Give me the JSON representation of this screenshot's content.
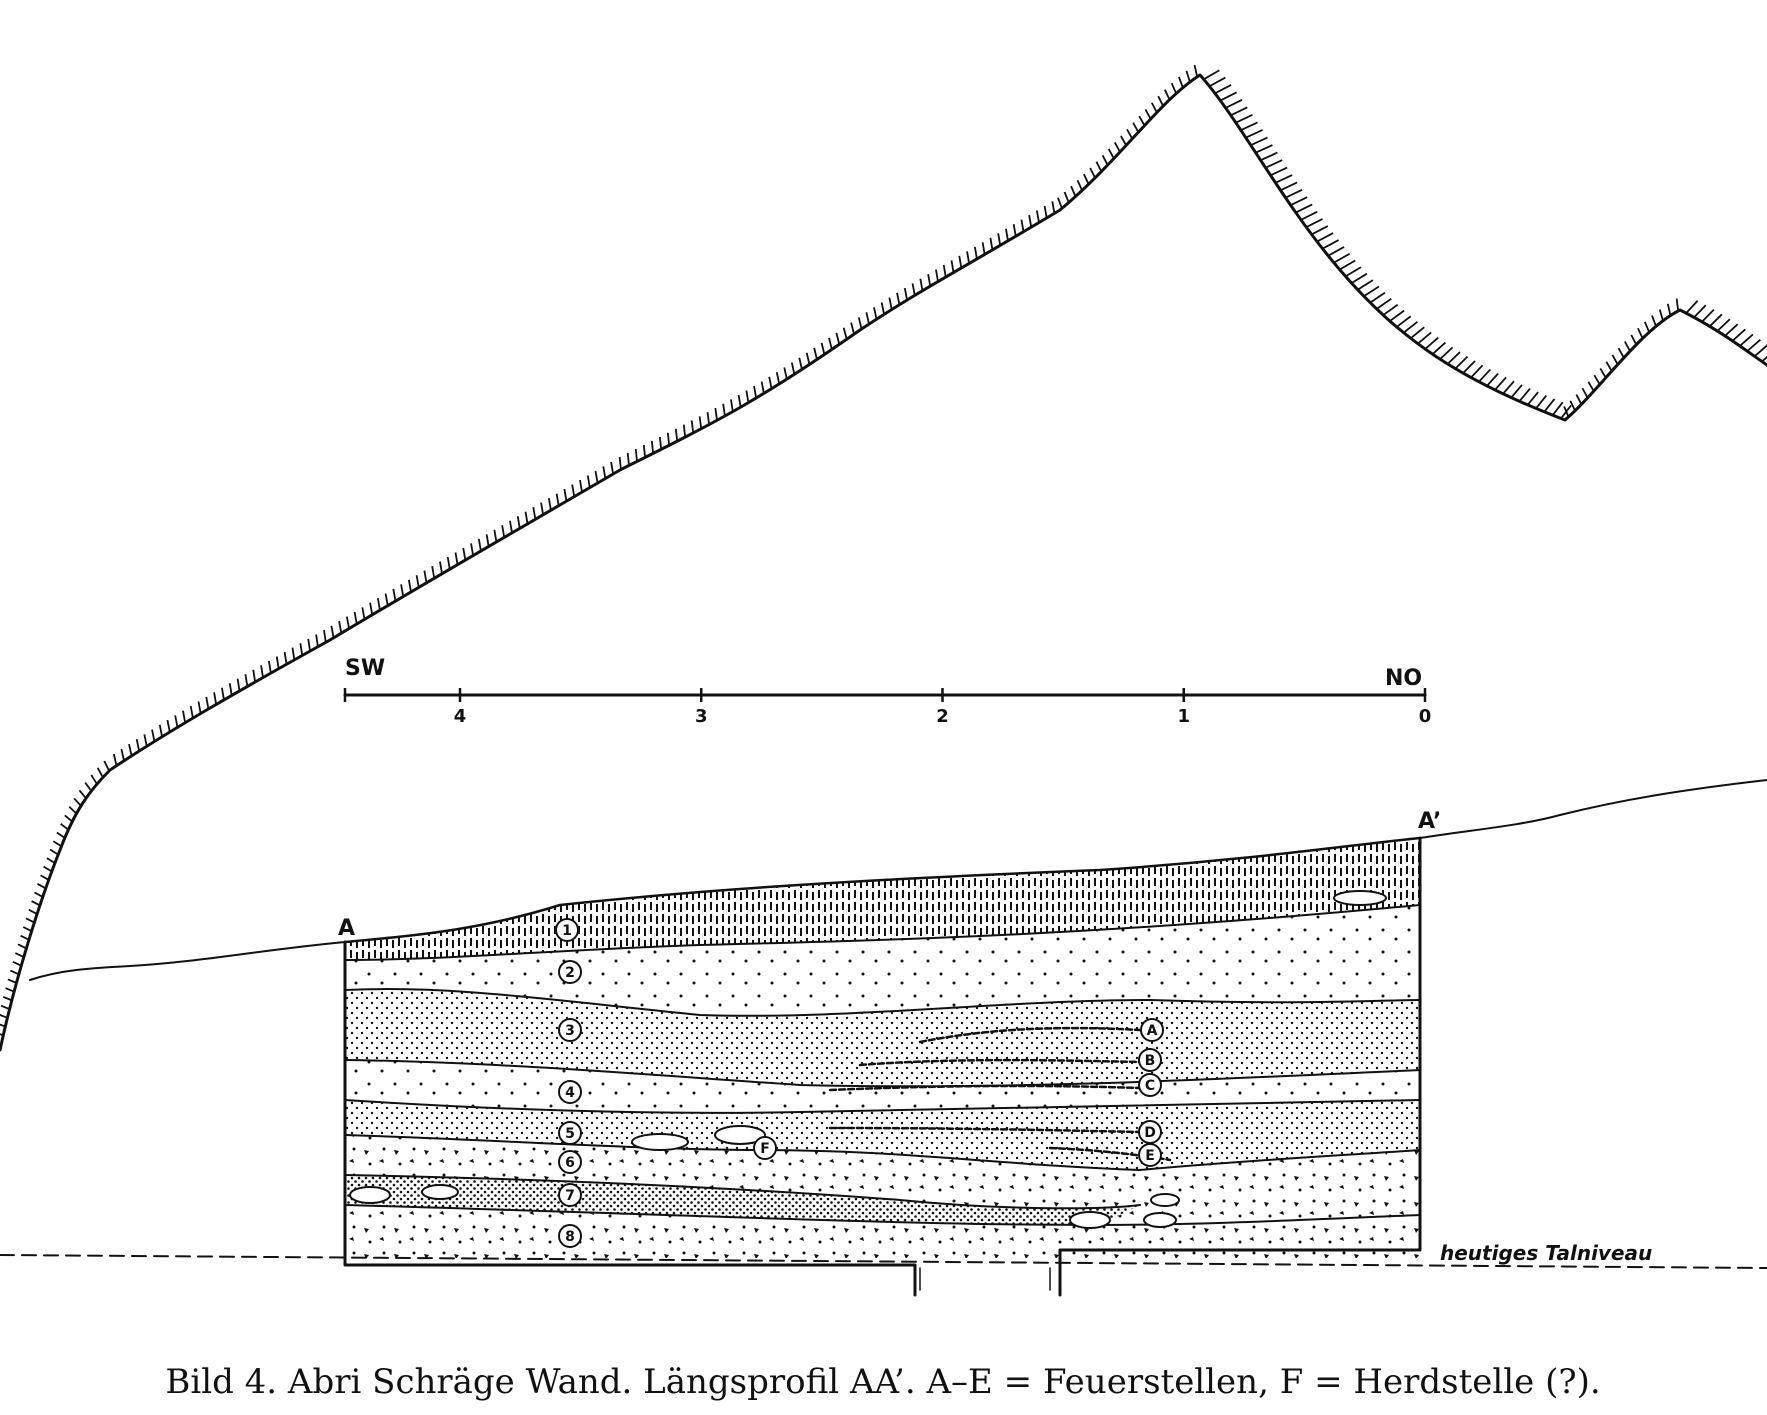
{
  "caption": "Bild 4. Abri Schräge Wand. Längsprofil AA’. A–E = Feuerstellen, F = Herdstelle (?).",
  "scale": {
    "left_label": "SW",
    "right_label": "NO",
    "ticks": [
      "4",
      "3",
      "2",
      "1",
      "0"
    ]
  },
  "profile": {
    "start_label": "A",
    "end_label": "A’"
  },
  "layers": [
    "1",
    "2",
    "3",
    "4",
    "5",
    "6",
    "7",
    "8"
  ],
  "hearths": [
    "A",
    "B",
    "C",
    "D",
    "E",
    "F"
  ],
  "valley_label": "heutiges Talniveau"
}
